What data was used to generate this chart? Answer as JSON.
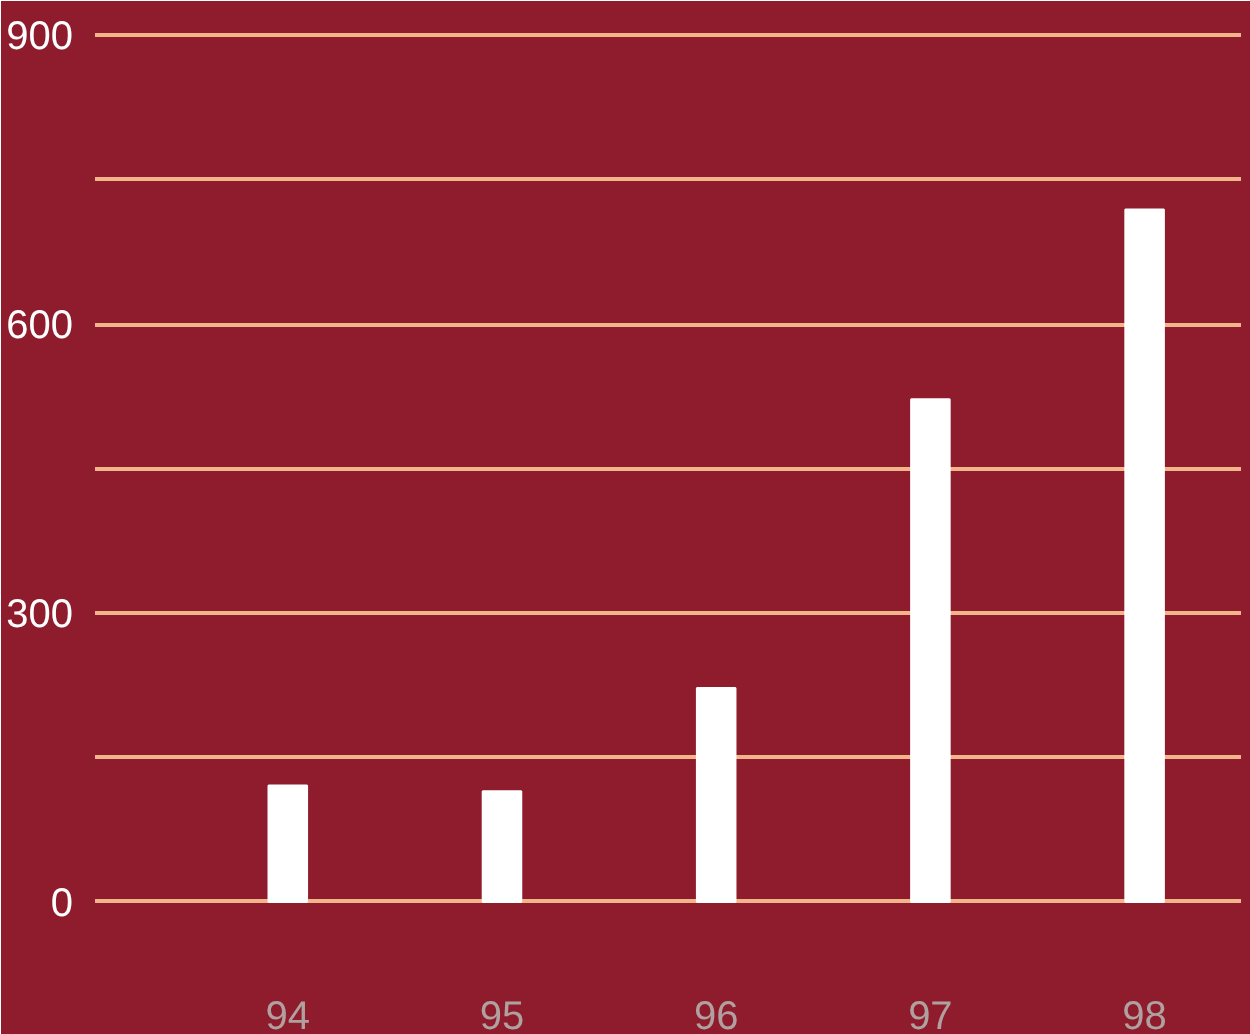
{
  "chart_data": {
    "type": "bar",
    "categories": [
      "94",
      "95",
      "96",
      "97",
      "98"
    ],
    "values": [
      121,
      115,
      222,
      522,
      719
    ],
    "color": "#ffffff",
    "ylim": [
      -80,
      925
    ],
    "yticks": [
      0,
      {
        "value": 150,
        "label": null
      },
      300,
      {
        "value": 450,
        "label": null
      },
      600,
      {
        "value": 750,
        "label": null
      },
      900
    ],
    "grid": "y"
  }
}
